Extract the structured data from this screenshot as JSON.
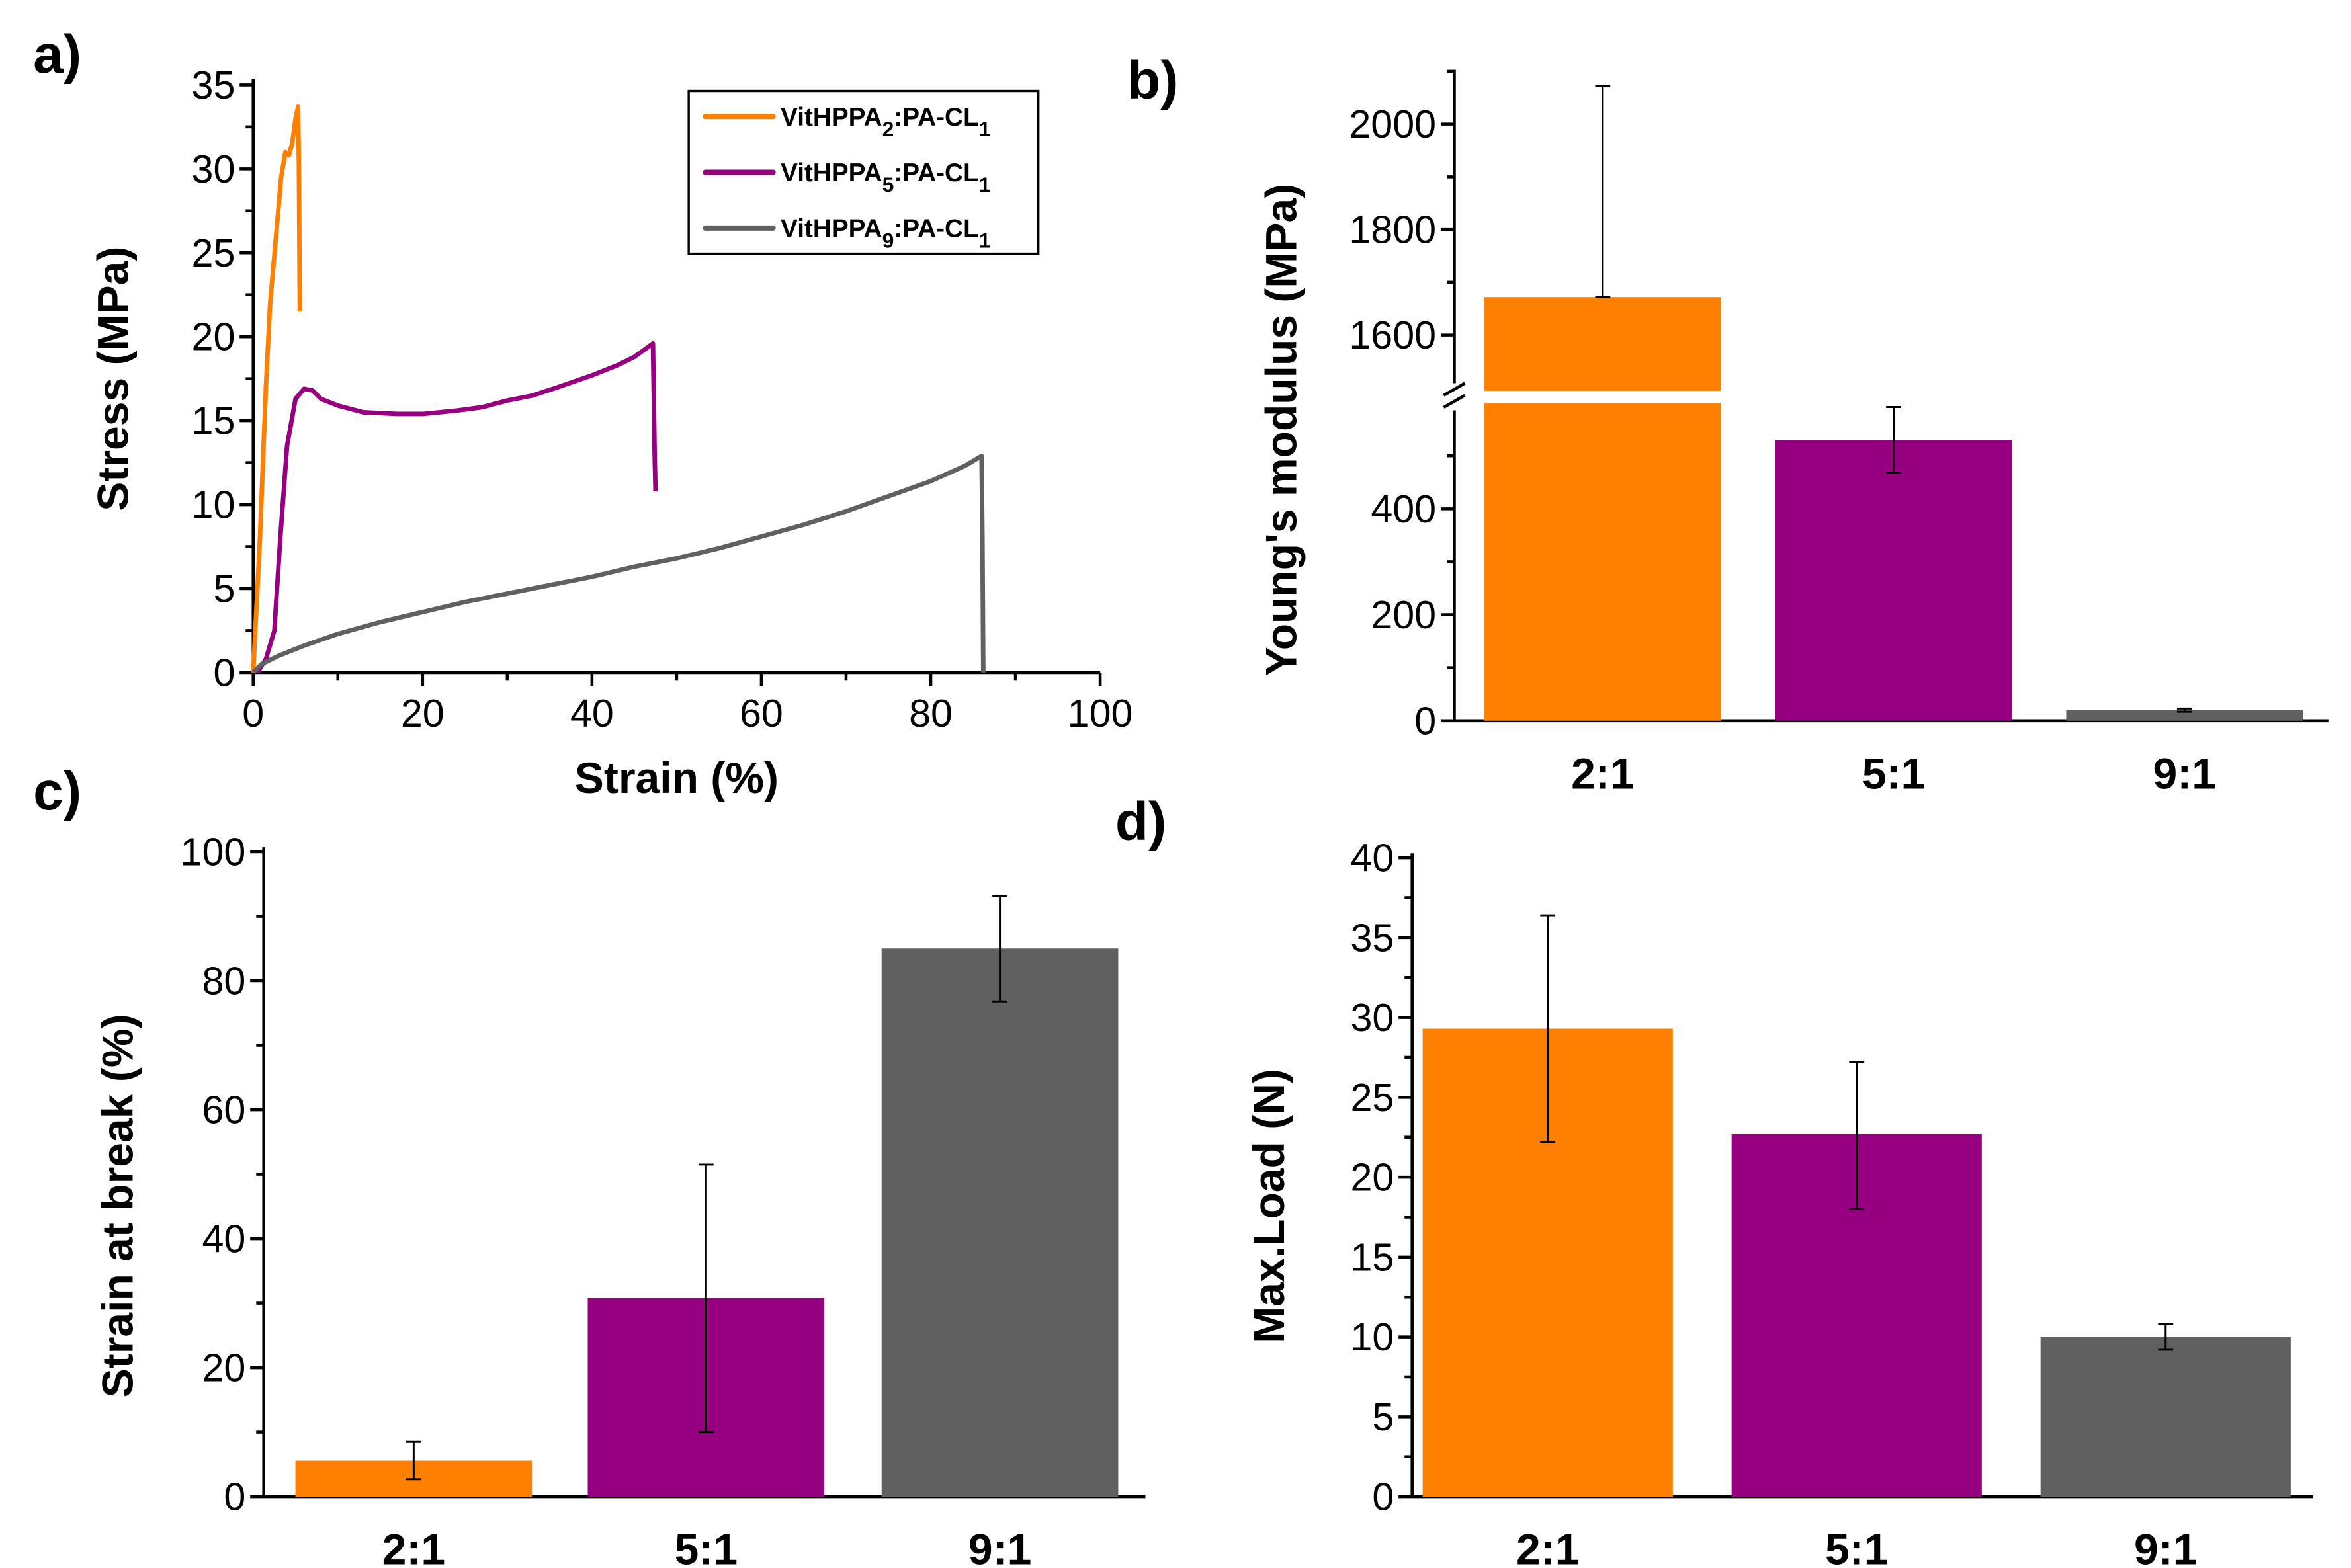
{
  "colors": {
    "orange": "#ff8000",
    "purple": "#960080",
    "gray": "#606060"
  },
  "chart_data": [
    {
      "panel": "a)",
      "type": "line",
      "xlabel": "Strain (%)",
      "ylabel": "Stress (MPa)",
      "xlim": [
        0,
        100
      ],
      "ylim": [
        0,
        35
      ],
      "xticks": [
        0,
        20,
        40,
        60,
        80,
        100
      ],
      "yticks": [
        0,
        5,
        10,
        15,
        20,
        25,
        30,
        35
      ],
      "legend_placement": "top-right",
      "series": [
        {
          "name": "VitHPPA",
          "sub": "2",
          "suffix": ":PA-CL",
          "sub2": "1",
          "color": "#ff8000",
          "points": [
            [
              0,
              0
            ],
            [
              0.8,
              8
            ],
            [
              1.5,
              17
            ],
            [
              2,
              22
            ],
            [
              2.7,
              26
            ],
            [
              3.3,
              29.5
            ],
            [
              3.8,
              31
            ],
            [
              4.2,
              30.8
            ],
            [
              4.6,
              31.5
            ],
            [
              5,
              33
            ],
            [
              5.3,
              33.7
            ],
            [
              5.4,
              30
            ],
            [
              5.5,
              21.5
            ]
          ]
        },
        {
          "name": "VitHPPA",
          "sub": "5",
          "suffix": ":PA-CL",
          "sub2": "1",
          "color": "#960080",
          "points": [
            [
              0.5,
              0
            ],
            [
              1.5,
              0.8
            ],
            [
              2.5,
              2.5
            ],
            [
              3.2,
              8
            ],
            [
              4,
              13.5
            ],
            [
              5,
              16.3
            ],
            [
              6,
              16.9
            ],
            [
              7,
              16.8
            ],
            [
              8,
              16.3
            ],
            [
              10,
              15.9
            ],
            [
              13,
              15.5
            ],
            [
              17,
              15.4
            ],
            [
              20,
              15.4
            ],
            [
              24,
              15.6
            ],
            [
              27,
              15.8
            ],
            [
              30,
              16.2
            ],
            [
              33,
              16.5
            ],
            [
              36,
              17
            ],
            [
              40,
              17.7
            ],
            [
              43,
              18.3
            ],
            [
              45,
              18.8
            ],
            [
              47.2,
              19.6
            ],
            [
              47.4,
              13
            ],
            [
              47.5,
              10.8
            ]
          ]
        },
        {
          "name": "VitHPPA",
          "sub": "9",
          "suffix": ":PA-CL",
          "sub2": "1",
          "color": "#606060",
          "points": [
            [
              0,
              0
            ],
            [
              1,
              0.5
            ],
            [
              3,
              1
            ],
            [
              6,
              1.6
            ],
            [
              10,
              2.3
            ],
            [
              15,
              3
            ],
            [
              20,
              3.6
            ],
            [
              25,
              4.2
            ],
            [
              30,
              4.7
            ],
            [
              35,
              5.2
            ],
            [
              40,
              5.7
            ],
            [
              45,
              6.3
            ],
            [
              50,
              6.8
            ],
            [
              55,
              7.4
            ],
            [
              60,
              8.1
            ],
            [
              65,
              8.8
            ],
            [
              70,
              9.6
            ],
            [
              75,
              10.5
            ],
            [
              80,
              11.4
            ],
            [
              84,
              12.3
            ],
            [
              86,
              12.9
            ],
            [
              86.1,
              8
            ],
            [
              86.2,
              0
            ]
          ]
        }
      ]
    },
    {
      "panel": "b)",
      "type": "bar",
      "ylabel": "Young's modulus (MPa)",
      "categories": [
        "2:1",
        "5:1",
        "9:1"
      ],
      "values": [
        1672,
        530,
        20
      ],
      "errors": [
        [
          1672,
          2072
        ],
        [
          468,
          592
        ],
        [
          17,
          23
        ]
      ],
      "colors": [
        "#ff8000",
        "#960080",
        "#606060"
      ],
      "axis_break": [
        600,
        1500
      ],
      "ylim_lower": [
        0,
        600
      ],
      "ylim_upper": [
        1500,
        2100
      ],
      "yticks": [
        0,
        200,
        400,
        1600,
        1800,
        2000
      ]
    },
    {
      "panel": "c)",
      "type": "bar",
      "ylabel": "Strain at break (%)",
      "categories": [
        "2:1",
        "5:1",
        "9:1"
      ],
      "values": [
        5.6,
        30.8,
        85
      ],
      "errors": [
        [
          2.7,
          8.5
        ],
        [
          10,
          51.5
        ],
        [
          76.8,
          93.1
        ]
      ],
      "colors": [
        "#ff8000",
        "#960080",
        "#606060"
      ],
      "ylim": [
        0,
        100
      ],
      "yticks": [
        0,
        20,
        40,
        60,
        80,
        100
      ]
    },
    {
      "panel": "d)",
      "type": "bar",
      "ylabel": "Max.Load (N)",
      "categories": [
        "2:1",
        "5:1",
        "9:1"
      ],
      "values": [
        29.3,
        22.7,
        10
      ],
      "errors": [
        [
          22.2,
          36.4
        ],
        [
          18,
          27.2
        ],
        [
          9.2,
          10.8
        ]
      ],
      "colors": [
        "#ff8000",
        "#960080",
        "#606060"
      ],
      "ylim": [
        0,
        40
      ],
      "yticks": [
        0,
        5,
        10,
        15,
        20,
        25,
        30,
        35,
        40
      ]
    }
  ]
}
